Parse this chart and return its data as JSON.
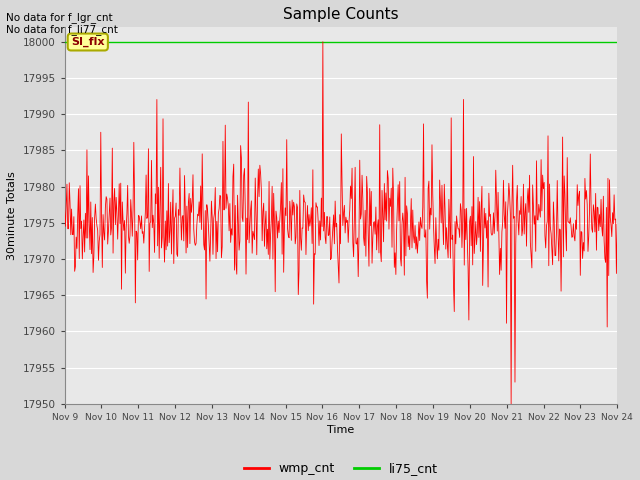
{
  "title": "Sample Counts",
  "xlabel": "Time",
  "ylabel": "30minute Totals",
  "ylim": [
    17950,
    18002
  ],
  "yticks": [
    17950,
    17955,
    17960,
    17965,
    17970,
    17975,
    17980,
    17985,
    17990,
    17995,
    18000
  ],
  "background_color": "#d8d8d8",
  "plot_bg_color": "#e8e8e8",
  "red_line_color": "#ff0000",
  "green_line_color": "#00cc00",
  "grid_color": "#ffffff",
  "annotations": [
    "No data for f_lgr_cnt",
    "No data for f_li77_cnt"
  ],
  "legend_entries": [
    "wmp_cnt",
    "li75_cnt"
  ],
  "si_flx_label": "SI_flx",
  "si_flx_bg": "#ffff99",
  "si_flx_border": "#aaaa00",
  "x_labels": [
    "Nov 9",
    "Nov 10",
    "Nov 11",
    "Nov 12",
    "Nov 13",
    "Nov 14",
    "Nov 15",
    "Nov 16",
    "Nov 17",
    "Nov 18",
    "Nov 19",
    "Nov 20",
    "Nov 21",
    "Nov 22",
    "Nov 23",
    "Nov 24"
  ],
  "seed": 42
}
